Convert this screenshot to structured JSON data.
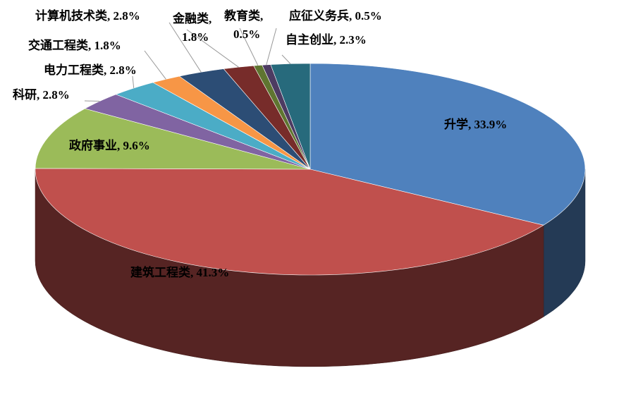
{
  "chart_data": {
    "type": "pie3d",
    "labels": [
      "升学, 33.9%",
      "建筑工程类, 41.3%",
      "政府事业, 9.6%",
      "科研, 2.8%",
      "电力工程类, 2.8%",
      "交通工程类, 1.8%",
      "计算机技术类, 2.8%",
      "金融类,\n1.8%",
      "教育类,\n0.5%",
      "应征义务兵, 0.5%",
      "自主创业, 2.3%"
    ],
    "values": [
      33.9,
      41.3,
      9.6,
      2.8,
      2.8,
      1.8,
      2.8,
      1.8,
      0.5,
      0.5,
      2.3
    ],
    "colors": [
      "#4f81bd",
      "#c0504d",
      "#9bbb59",
      "#8064a2",
      "#4bacc6",
      "#f79646",
      "#2c4d75",
      "#772c2a",
      "#5f7530",
      "#4d3b62",
      "#276a7c"
    ]
  }
}
